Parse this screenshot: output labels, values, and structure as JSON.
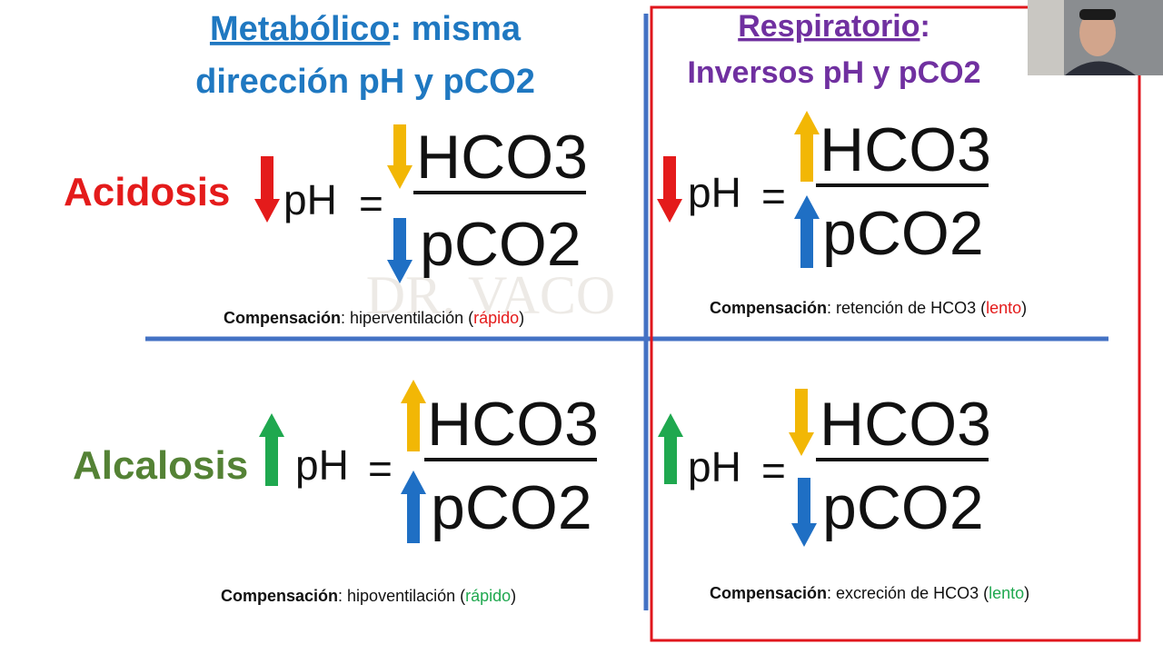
{
  "header_left": {
    "emph": "Metabólico",
    "rest": ": misma",
    "line2": "dirección pH y pCO2"
  },
  "header_right": {
    "emph": "Respiratorio",
    "rest": ":",
    "line2": "Inversos pH y pCO2"
  },
  "rows": [
    "Acidosis",
    "Alcalosis"
  ],
  "watermark": "DR. VACO",
  "quadrants": [
    {
      "ph": "pH",
      "eq": "=",
      "numerator": "HCO3",
      "denominator": "pCO2",
      "compensation": {
        "label": "Compensación",
        "text": ": hiperventilación (",
        "speed": "rápido",
        "close": ")"
      }
    },
    {
      "ph": "pH",
      "eq": "=",
      "numerator": "HCO3",
      "denominator": "pCO2",
      "compensation": {
        "label": "Compensación",
        "text": ": retención de HCO3 (",
        "speed": "lento",
        "close": ")"
      }
    },
    {
      "ph": "pH",
      "eq": "=",
      "numerator": "HCO3",
      "denominator": "pCO2",
      "compensation": {
        "label": "Compensación",
        "text": ": hipoventilación (",
        "speed": "rápido",
        "close": ")"
      }
    },
    {
      "ph": "pH",
      "eq": "=",
      "numerator": "HCO3",
      "denominator": "pCO2",
      "compensation": {
        "label": "Compensación",
        "text": ": excreción de HCO3 (",
        "speed": "lento",
        "close": ")"
      }
    }
  ]
}
